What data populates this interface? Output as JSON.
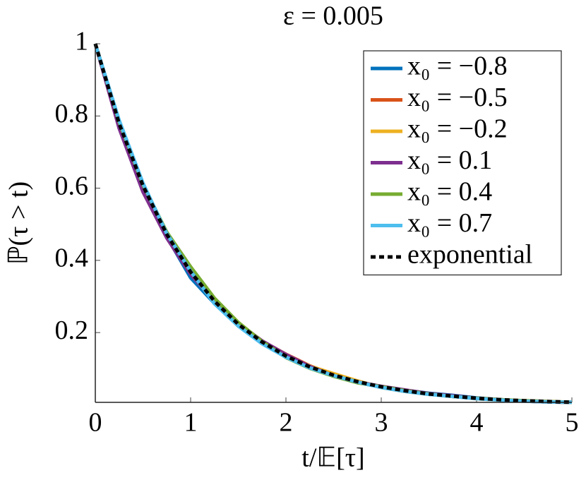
{
  "chart_data": {
    "type": "line",
    "title": "ε = 0.005",
    "xlabel": "t/𝔼[τ]",
    "ylabel": "ℙ(τ > t)",
    "x": [
      0,
      0.25,
      0.5,
      0.75,
      1,
      1.25,
      1.5,
      1.75,
      2,
      2.25,
      2.5,
      2.75,
      3,
      3.25,
      3.5,
      3.75,
      4,
      4.25,
      4.5,
      4.75,
      5
    ],
    "xlim": [
      0,
      5
    ],
    "xticks": [
      0,
      1,
      2,
      3,
      4,
      5
    ],
    "ylim": [
      0.0067,
      1
    ],
    "yticks": [
      0.2,
      0.4,
      0.6,
      0.8,
      1
    ],
    "legend": "upper right",
    "series": [
      {
        "name": "x₀ = −0.8",
        "color": "#0072bd",
        "style": "solid",
        "values": [
          1,
          0.772,
          0.602,
          0.466,
          0.352,
          0.281,
          0.219,
          0.172,
          0.138,
          0.104,
          0.083,
          0.062,
          0.049,
          0.04,
          0.032,
          0.026,
          0.019,
          0.014,
          0.01,
          0.008,
          0.007
        ]
      },
      {
        "name": "x₀ = −0.5",
        "color": "#d95319",
        "style": "solid",
        "values": [
          1,
          0.781,
          0.611,
          0.47,
          0.365,
          0.285,
          0.226,
          0.176,
          0.14,
          0.108,
          0.083,
          0.064,
          0.049,
          0.038,
          0.03,
          0.023,
          0.018,
          0.014,
          0.011,
          0.009,
          0.007
        ]
      },
      {
        "name": "x₀ = −0.2",
        "color": "#edb120",
        "style": "solid",
        "values": [
          1,
          0.776,
          0.605,
          0.468,
          0.366,
          0.288,
          0.222,
          0.173,
          0.136,
          0.107,
          0.086,
          0.066,
          0.048,
          0.037,
          0.029,
          0.024,
          0.017,
          0.013,
          0.011,
          0.008,
          0.007
        ]
      },
      {
        "name": "x₀ = 0.1",
        "color": "#7e2f8e",
        "style": "solid",
        "values": [
          1,
          0.766,
          0.59,
          0.462,
          0.362,
          0.286,
          0.225,
          0.177,
          0.139,
          0.106,
          0.08,
          0.063,
          0.051,
          0.041,
          0.031,
          0.025,
          0.018,
          0.014,
          0.01,
          0.008,
          0.007
        ]
      },
      {
        "name": "x₀ = 0.4",
        "color": "#77ac30",
        "style": "solid",
        "values": [
          1,
          0.784,
          0.61,
          0.478,
          0.382,
          0.295,
          0.228,
          0.175,
          0.131,
          0.101,
          0.079,
          0.061,
          0.05,
          0.039,
          0.03,
          0.023,
          0.018,
          0.014,
          0.011,
          0.009,
          0.007
        ]
      },
      {
        "name": "x₀ = 0.7",
        "color": "#4dbeee",
        "style": "solid",
        "values": [
          1,
          0.788,
          0.614,
          0.474,
          0.37,
          0.28,
          0.218,
          0.169,
          0.132,
          0.102,
          0.081,
          0.063,
          0.048,
          0.037,
          0.029,
          0.023,
          0.017,
          0.013,
          0.01,
          0.008,
          0.007
        ]
      },
      {
        "name": "exponential",
        "color": "#000000",
        "style": "dashed",
        "values": [
          1,
          0.779,
          0.607,
          0.472,
          0.368,
          0.287,
          0.223,
          0.174,
          0.135,
          0.105,
          0.082,
          0.064,
          0.05,
          0.039,
          0.03,
          0.024,
          0.018,
          0.014,
          0.011,
          0.009,
          0.007
        ]
      }
    ]
  }
}
